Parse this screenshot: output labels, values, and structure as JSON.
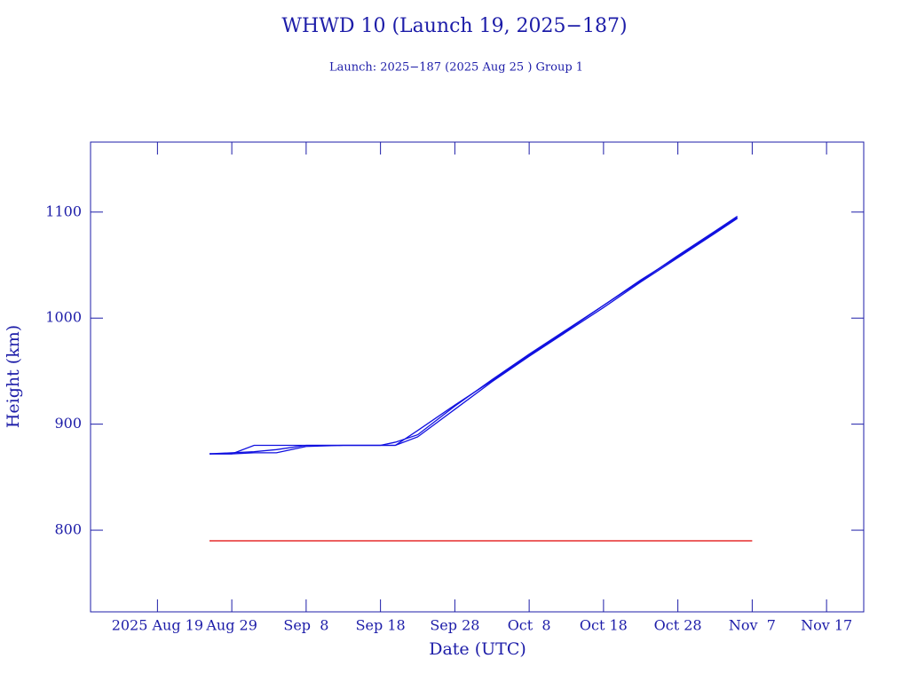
{
  "chart_data": {
    "type": "line",
    "title": "WHWD 10 (Launch 19, 2025−187)",
    "subtitle": "Launch: 2025−187  (2025 Aug 25 )  Group 1",
    "x_label": "Date (UTC)",
    "y_label": "Height (km)",
    "xlim": [
      "2025-08-10",
      "2025-11-22"
    ],
    "xticks": [
      {
        "value": "2025-08-19",
        "label": "2025 Aug 19"
      },
      {
        "value": "2025-08-29",
        "label": "Aug 29"
      },
      {
        "value": "2025-09-08",
        "label": "Sep  8"
      },
      {
        "value": "2025-09-18",
        "label": "Sep 18"
      },
      {
        "value": "2025-09-28",
        "label": "Sep 28"
      },
      {
        "value": "2025-10-08",
        "label": "Oct  8"
      },
      {
        "value": "2025-10-18",
        "label": "Oct 18"
      },
      {
        "value": "2025-10-28",
        "label": "Oct 28"
      },
      {
        "value": "2025-11-07",
        "label": "Nov  7"
      },
      {
        "value": "2025-11-17",
        "label": "Nov 17"
      }
    ],
    "ylim": [
      723,
      1166
    ],
    "yticks": [
      800,
      900,
      1000,
      1100
    ],
    "series": [
      {
        "color": "#1010e0",
        "x": [
          "2025-08-26",
          "2025-08-29",
          "2025-09-01",
          "2025-09-04",
          "2025-09-08",
          "2025-09-13",
          "2025-09-18",
          "2025-09-20",
          "2025-09-23",
          "2025-09-28",
          "2025-10-03",
          "2025-10-08",
          "2025-10-13",
          "2025-10-18",
          "2025-10-23",
          "2025-10-28",
          "2025-11-02",
          "2025-11-05"
        ],
        "values": [
          872,
          872,
          880,
          880,
          880,
          880,
          880,
          880,
          894,
          918,
          941,
          965,
          988,
          1012,
          1035,
          1059,
          1082,
          1096
        ]
      },
      {
        "color": "#1010e0",
        "x": [
          "2025-08-26",
          "2025-08-29",
          "2025-09-01",
          "2025-09-04",
          "2025-09-08",
          "2025-09-13",
          "2025-09-18",
          "2025-09-20",
          "2025-09-23",
          "2025-09-28",
          "2025-10-03",
          "2025-10-08",
          "2025-10-13",
          "2025-10-18",
          "2025-10-23",
          "2025-10-28",
          "2025-11-02",
          "2025-11-05"
        ],
        "values": [
          872,
          873,
          874,
          876,
          880,
          880,
          880,
          883,
          890,
          917,
          942,
          966,
          989,
          1012,
          1036,
          1058,
          1081,
          1095
        ]
      },
      {
        "color": "#1010e0",
        "x": [
          "2025-08-26",
          "2025-08-29",
          "2025-09-01",
          "2025-09-04",
          "2025-09-08",
          "2025-09-13",
          "2025-09-18",
          "2025-09-20",
          "2025-09-23",
          "2025-09-28",
          "2025-10-03",
          "2025-10-08",
          "2025-10-13",
          "2025-10-18",
          "2025-10-23",
          "2025-10-28",
          "2025-11-02",
          "2025-11-05"
        ],
        "values": [
          872,
          872,
          873,
          873,
          879,
          880,
          880,
          880,
          888,
          914,
          940,
          964,
          987,
          1010,
          1034,
          1057,
          1080,
          1094
        ]
      },
      {
        "color": "#e00000",
        "x": [
          "2025-08-26",
          "2025-11-07"
        ],
        "values": [
          790,
          790
        ]
      }
    ]
  }
}
